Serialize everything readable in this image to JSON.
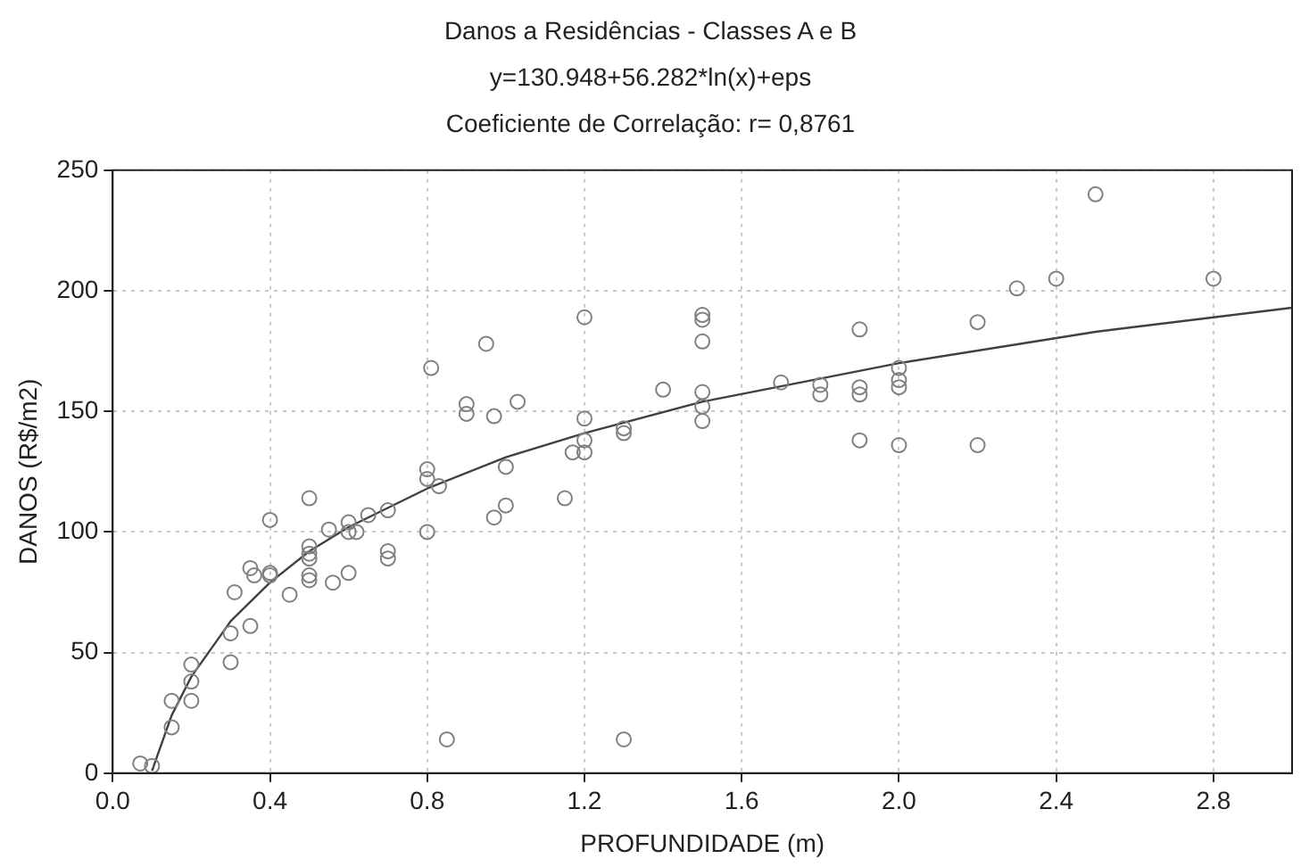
{
  "chart_data": {
    "type": "scatter",
    "title": "Danos a Residências - Classes A e B",
    "subtitle": "y=130.948+56.282*ln(x)+eps",
    "annotations": [
      "Coeficiente de Correlação: r= 0,8761"
    ],
    "xlabel": "PROFUNDIDADE (m)",
    "ylabel": "DANOS (R$/m2)",
    "xlim": [
      0,
      3
    ],
    "xticks": [
      {
        "value": 0,
        "label": "0.0"
      },
      0.4,
      0.8,
      1.2,
      1.6,
      {
        "value": 2,
        "label": "2.0"
      },
      2.4,
      2.8
    ],
    "ylim": [
      0,
      250
    ],
    "yticks": [
      0,
      50,
      100,
      150,
      200,
      250
    ],
    "grid": true,
    "legend": false,
    "marker": "circle",
    "series": [
      {
        "type": "scatter",
        "color": "#808080",
        "x": [
          0.07,
          0.1,
          0.15,
          0.15,
          0.2,
          0.2,
          0.2,
          0.3,
          0.3,
          0.31,
          0.35,
          0.35,
          0.36,
          0.4,
          0.4,
          0.4,
          0.45,
          0.5,
          0.5,
          0.5,
          0.5,
          0.5,
          0.5,
          0.55,
          0.56,
          0.6,
          0.6,
          0.62,
          0.6,
          0.65,
          0.7,
          0.7,
          0.7,
          0.8,
          0.8,
          0.8,
          0.83,
          0.85,
          0.81,
          0.9,
          0.9,
          0.95,
          0.97,
          0.97,
          1.0,
          1.0,
          1.03,
          1.15,
          1.17,
          1.2,
          1.2,
          1.2,
          1.2,
          1.3,
          1.3,
          1.3,
          1.4,
          1.5,
          1.5,
          1.5,
          1.5,
          1.5,
          1.5,
          1.7,
          1.8,
          1.8,
          1.9,
          1.9,
          1.9,
          1.9,
          2.0,
          2.0,
          2.0,
          2.0,
          2.2,
          2.2,
          2.3,
          2.4,
          2.5,
          2.8
        ],
        "values": [
          4,
          3,
          19,
          30,
          45,
          38,
          30,
          46,
          58,
          75,
          61,
          85,
          82,
          105,
          83,
          82,
          74,
          114,
          94,
          91,
          89,
          82,
          80,
          101,
          79,
          104,
          100,
          100,
          83,
          107,
          109,
          92,
          89,
          126,
          122,
          100,
          119,
          14,
          168,
          153,
          149,
          178,
          148,
          106,
          127,
          111,
          154,
          114,
          133,
          189,
          147,
          138,
          133,
          143,
          141,
          14,
          159,
          190,
          188,
          179,
          158,
          152,
          146,
          162,
          161,
          157,
          184,
          160,
          157,
          138,
          168,
          163,
          160,
          136,
          187,
          136,
          201,
          205,
          240,
          205
        ]
      },
      {
        "type": "line",
        "color": "#404040",
        "marker": "none",
        "x": [
          0.1,
          0.15,
          0.2,
          0.3,
          0.4,
          0.5,
          0.6,
          0.8,
          1.0,
          1.2,
          1.5,
          2.0,
          2.5,
          3.0
        ],
        "values": [
          1,
          24,
          40,
          63,
          79,
          92,
          102,
          118,
          131,
          141,
          154,
          170,
          183,
          193
        ]
      }
    ]
  }
}
